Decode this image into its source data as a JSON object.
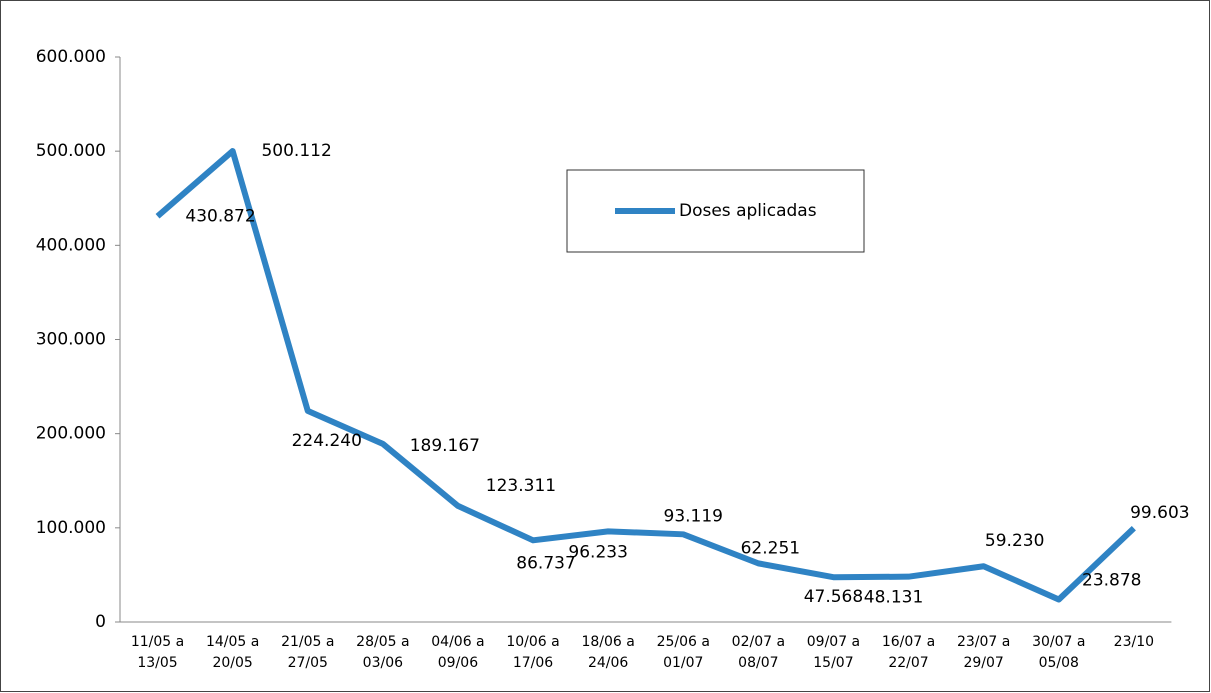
{
  "chart_data": {
    "type": "line",
    "categories": [
      "11/05 a\n13/05",
      "14/05 a\n20/05",
      "21/05 a\n27/05",
      "28/05 a\n03/06",
      "04/06 a\n09/06",
      "10/06 a\n17/06",
      "18/06 a\n24/06",
      "25/06 a\n01/07",
      "02/07 a\n08/07",
      "09/07 a\n15/07",
      "16/07 a\n22/07",
      "23/07 a\n29/07",
      "30/07 a\n05/08",
      "23/10"
    ],
    "series": [
      {
        "name": "Doses aplicadas",
        "color": "#2f83c4",
        "values": [
          430872,
          500112,
          224240,
          189167,
          123311,
          86737,
          96233,
          93119,
          62251,
          47568,
          48131,
          59230,
          23878,
          99603
        ],
        "value_labels": [
          "430.872",
          "500.112",
          "224.240",
          "189.167",
          "123.311",
          "86.737",
          "96.233",
          "93.119",
          "62.251",
          "47.568",
          "48.131",
          "59.230",
          "23.878",
          "99.603"
        ]
      }
    ],
    "ylim": [
      0,
      600000
    ],
    "yticks": [
      0,
      {
        "value": 100000,
        "label": "100.000"
      },
      {
        "value": 200000,
        "label": "200.000"
      },
      {
        "value": 300000,
        "label": "300.000"
      },
      {
        "value": 400000,
        "label": "400.000"
      },
      {
        "value": 500000,
        "label": "500.000"
      },
      {
        "value": 600000,
        "label": "600.000"
      }
    ],
    "legend": "inside-top-center"
  }
}
